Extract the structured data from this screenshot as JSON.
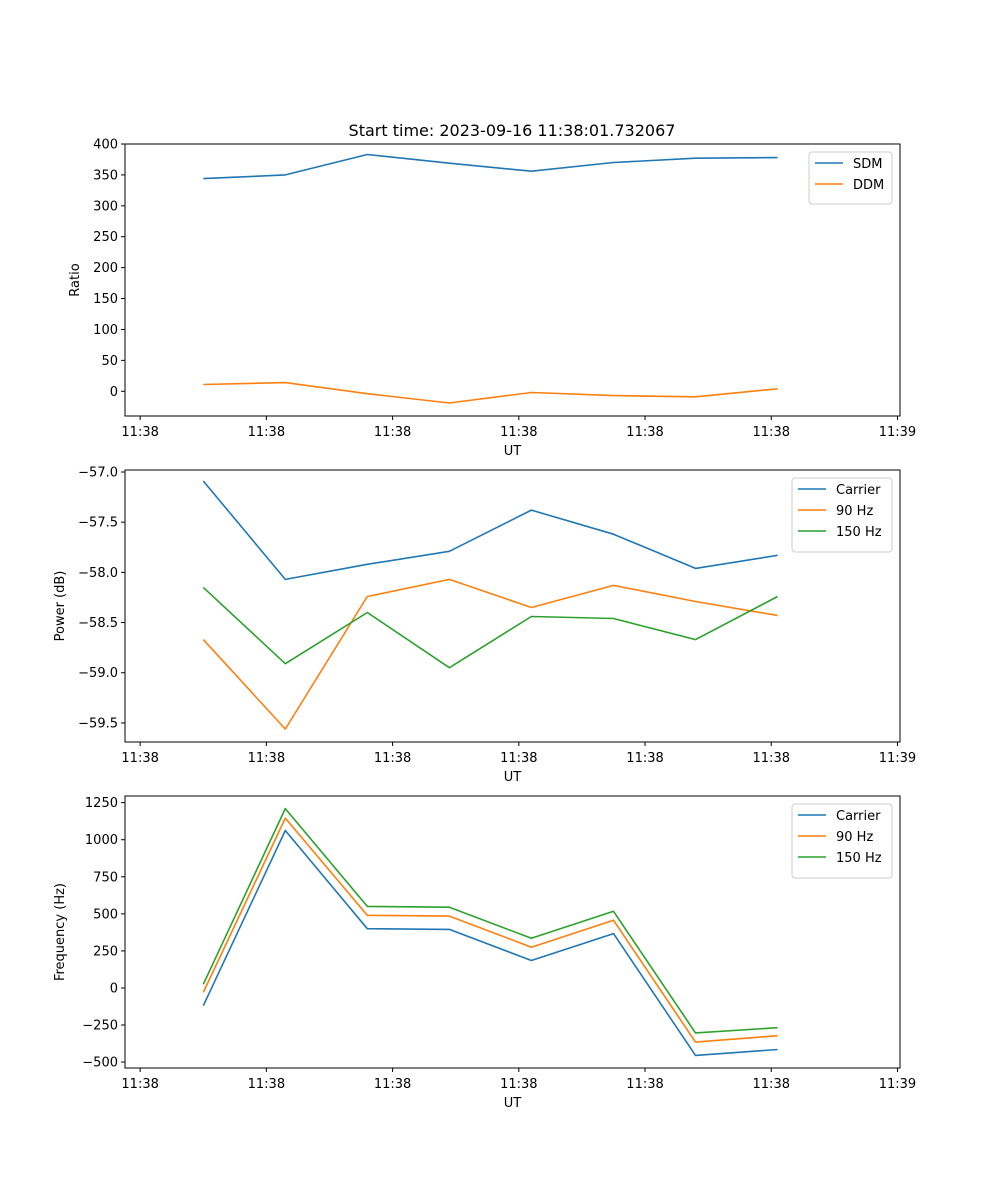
{
  "figure_title": "Start time: 2023-09-16 11:38:01.732067",
  "colors": {
    "blue": "#1f77b4",
    "orange": "#ff7f0e",
    "green": "#2ca02c"
  },
  "chart_data": [
    {
      "type": "line",
      "title": "Start time: 2023-09-16 11:38:01.732067",
      "xlabel": "UT",
      "ylabel": "Ratio",
      "x_ticks": [
        "11:38",
        "11:38",
        "11:38",
        "11:38",
        "11:38",
        "11:38",
        "11:39"
      ],
      "x_tick_pos": [
        0.0,
        1.0,
        2.0,
        3.0,
        4.0,
        5.0,
        6.0
      ],
      "xlim": [
        -0.12,
        6.02
      ],
      "x": [
        0.5,
        1.15,
        1.8,
        2.45,
        3.1,
        3.75,
        4.4,
        5.05
      ],
      "ylim": [
        -40,
        400
      ],
      "y_ticks": [
        0,
        50,
        100,
        150,
        200,
        250,
        300,
        350,
        400
      ],
      "y_tick_labels": [
        "0",
        "50",
        "100",
        "150",
        "200",
        "250",
        "300",
        "350",
        "400"
      ],
      "legend": "top-right",
      "series": [
        {
          "name": "SDM",
          "color": "#1f77b4",
          "values": [
            344,
            350,
            383,
            369,
            356,
            370,
            377,
            378
          ]
        },
        {
          "name": "DDM",
          "color": "#ff7f0e",
          "values": [
            11,
            14,
            -4,
            -19,
            -2,
            -7,
            -9,
            4
          ]
        }
      ]
    },
    {
      "type": "line",
      "xlabel": "UT",
      "ylabel": "Power (dB)",
      "x_ticks": [
        "11:38",
        "11:38",
        "11:38",
        "11:38",
        "11:38",
        "11:38",
        "11:39"
      ],
      "x_tick_pos": [
        0.0,
        1.0,
        2.0,
        3.0,
        4.0,
        5.0,
        6.0
      ],
      "xlim": [
        -0.12,
        6.02
      ],
      "x": [
        0.5,
        1.15,
        1.8,
        2.45,
        3.1,
        3.75,
        4.4,
        5.05
      ],
      "ylim": [
        -59.69,
        -56.98
      ],
      "y_ticks": [
        -59.5,
        -59.0,
        -58.5,
        -58.0,
        -57.5,
        -57.0
      ],
      "y_tick_labels": [
        "−59.5",
        "−59.0",
        "−58.5",
        "−58.0",
        "−57.5",
        "−57.0"
      ],
      "legend": "top-right",
      "series": [
        {
          "name": "Carrier",
          "color": "#1f77b4",
          "values": [
            -57.09,
            -58.07,
            -57.92,
            -57.79,
            -57.38,
            -57.62,
            -57.96,
            -57.83
          ]
        },
        {
          "name": "90 Hz",
          "color": "#ff7f0e",
          "values": [
            -58.67,
            -59.56,
            -58.24,
            -58.07,
            -58.35,
            -58.13,
            -58.29,
            -58.43
          ]
        },
        {
          "name": "150 Hz",
          "color": "#2ca02c",
          "values": [
            -58.15,
            -58.91,
            -58.4,
            -58.95,
            -58.44,
            -58.46,
            -58.67,
            -58.24
          ]
        }
      ]
    },
    {
      "type": "line",
      "xlabel": "UT",
      "ylabel": "Frequency (Hz)",
      "x_ticks": [
        "11:38",
        "11:38",
        "11:38",
        "11:38",
        "11:38",
        "11:38",
        "11:39"
      ],
      "x_tick_pos": [
        0.0,
        1.0,
        2.0,
        3.0,
        4.0,
        5.0,
        6.0
      ],
      "xlim": [
        -0.12,
        6.02
      ],
      "x": [
        0.5,
        1.15,
        1.8,
        2.45,
        3.1,
        3.75,
        4.4,
        5.05
      ],
      "ylim": [
        -540,
        1295
      ],
      "y_ticks": [
        -500,
        -250,
        0,
        250,
        500,
        750,
        1000,
        1250
      ],
      "y_tick_labels": [
        "−500",
        "−250",
        "0",
        "250",
        "500",
        "750",
        "1000",
        "1250"
      ],
      "legend": "top-right",
      "series": [
        {
          "name": "Carrier",
          "color": "#1f77b4",
          "values": [
            -120,
            1062,
            400,
            395,
            185,
            367,
            -455,
            -415
          ]
        },
        {
          "name": "90 Hz",
          "color": "#ff7f0e",
          "values": [
            -30,
            1146,
            490,
            485,
            275,
            457,
            -365,
            -322
          ]
        },
        {
          "name": "150 Hz",
          "color": "#2ca02c",
          "values": [
            25,
            1210,
            550,
            545,
            335,
            517,
            -303,
            -268
          ]
        }
      ]
    }
  ]
}
